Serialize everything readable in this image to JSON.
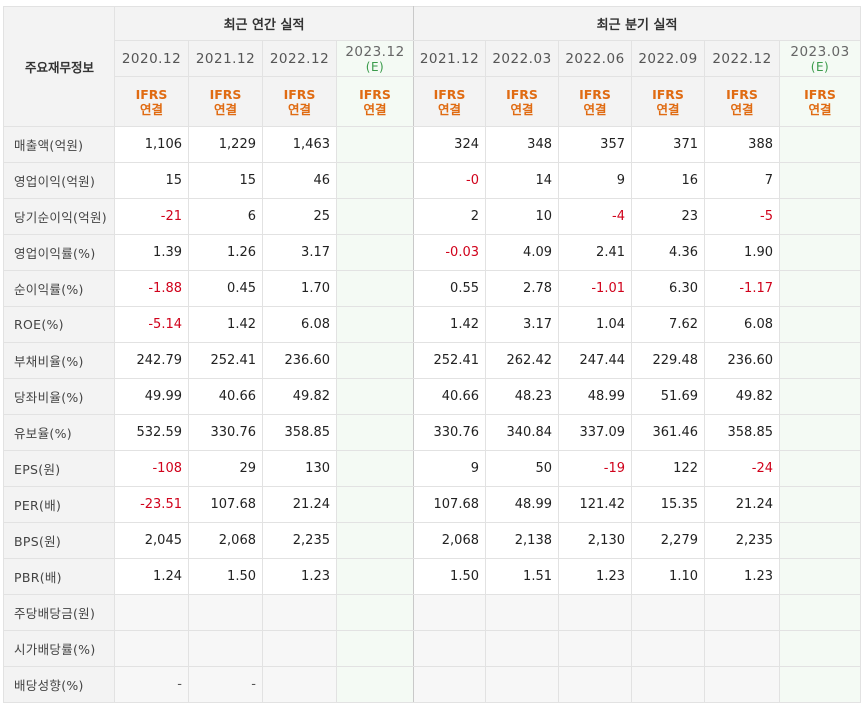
{
  "table": {
    "corner_label": "주요재무정보",
    "group_headers": [
      "최근 연간 실적",
      "최근 분기 실적"
    ],
    "annual_periods": [
      {
        "year": "2020.12",
        "sub": "",
        "basis": [
          "IFRS",
          "연결"
        ],
        "estimate": false
      },
      {
        "year": "2021.12",
        "sub": "",
        "basis": [
          "IFRS",
          "연결"
        ],
        "estimate": false
      },
      {
        "year": "2022.12",
        "sub": "",
        "basis": [
          "IFRS",
          "연결"
        ],
        "estimate": false
      },
      {
        "year": "2023.12",
        "sub": "(E)",
        "basis": [
          "IFRS",
          "연결"
        ],
        "estimate": true
      }
    ],
    "quarter_periods": [
      {
        "year": "2021.12",
        "sub": "",
        "basis": [
          "IFRS",
          "연결"
        ],
        "estimate": false
      },
      {
        "year": "2022.03",
        "sub": "",
        "basis": [
          "IFRS",
          "연결"
        ],
        "estimate": false
      },
      {
        "year": "2022.06",
        "sub": "",
        "basis": [
          "IFRS",
          "연결"
        ],
        "estimate": false
      },
      {
        "year": "2022.09",
        "sub": "",
        "basis": [
          "IFRS",
          "연결"
        ],
        "estimate": false
      },
      {
        "year": "2022.12",
        "sub": "",
        "basis": [
          "IFRS",
          "연결"
        ],
        "estimate": false
      },
      {
        "year": "2023.03",
        "sub": "(E)",
        "basis": [
          "IFRS",
          "연결"
        ],
        "estimate": true
      }
    ],
    "rows": [
      {
        "label": "매출액(억원)",
        "annual": [
          "1,106",
          "1,229",
          "1,463",
          ""
        ],
        "quarter": [
          "324",
          "348",
          "357",
          "371",
          "388",
          ""
        ]
      },
      {
        "label": "영업이익(억원)",
        "annual": [
          "15",
          "15",
          "46",
          ""
        ],
        "quarter": [
          "-0",
          "14",
          "9",
          "16",
          "7",
          ""
        ]
      },
      {
        "label": "당기순이익(억원)",
        "annual": [
          "-21",
          "6",
          "25",
          ""
        ],
        "quarter": [
          "2",
          "10",
          "-4",
          "23",
          "-5",
          ""
        ]
      },
      {
        "label": "영업이익률(%)",
        "annual": [
          "1.39",
          "1.26",
          "3.17",
          ""
        ],
        "quarter": [
          "-0.03",
          "4.09",
          "2.41",
          "4.36",
          "1.90",
          ""
        ]
      },
      {
        "label": "순이익률(%)",
        "annual": [
          "-1.88",
          "0.45",
          "1.70",
          ""
        ],
        "quarter": [
          "0.55",
          "2.78",
          "-1.01",
          "6.30",
          "-1.17",
          ""
        ]
      },
      {
        "label": "ROE(%)",
        "annual": [
          "-5.14",
          "1.42",
          "6.08",
          ""
        ],
        "quarter": [
          "1.42",
          "3.17",
          "1.04",
          "7.62",
          "6.08",
          ""
        ]
      },
      {
        "label": "부채비율(%)",
        "annual": [
          "242.79",
          "252.41",
          "236.60",
          ""
        ],
        "quarter": [
          "252.41",
          "262.42",
          "247.44",
          "229.48",
          "236.60",
          ""
        ]
      },
      {
        "label": "당좌비율(%)",
        "annual": [
          "49.99",
          "40.66",
          "49.82",
          ""
        ],
        "quarter": [
          "40.66",
          "48.23",
          "48.99",
          "51.69",
          "49.82",
          ""
        ]
      },
      {
        "label": "유보율(%)",
        "annual": [
          "532.59",
          "330.76",
          "358.85",
          ""
        ],
        "quarter": [
          "330.76",
          "340.84",
          "337.09",
          "361.46",
          "358.85",
          ""
        ]
      },
      {
        "label": "EPS(원)",
        "annual": [
          "-108",
          "29",
          "130",
          ""
        ],
        "quarter": [
          "9",
          "50",
          "-19",
          "122",
          "-24",
          ""
        ]
      },
      {
        "label": "PER(배)",
        "annual": [
          "-23.51",
          "107.68",
          "21.24",
          ""
        ],
        "quarter": [
          "107.68",
          "48.99",
          "121.42",
          "15.35",
          "21.24",
          ""
        ]
      },
      {
        "label": "BPS(원)",
        "annual": [
          "2,045",
          "2,068",
          "2,235",
          ""
        ],
        "quarter": [
          "2,068",
          "2,138",
          "2,130",
          "2,279",
          "2,235",
          ""
        ]
      },
      {
        "label": "PBR(배)",
        "annual": [
          "1.24",
          "1.50",
          "1.23",
          ""
        ],
        "quarter": [
          "1.50",
          "1.51",
          "1.23",
          "1.10",
          "1.23",
          ""
        ]
      },
      {
        "label": "주당배당금(원)",
        "annual": [
          "",
          "",
          "",
          ""
        ],
        "quarter": [
          "",
          "",
          "",
          "",
          "",
          ""
        ]
      },
      {
        "label": "시가배당률(%)",
        "annual": [
          "",
          "",
          "",
          ""
        ],
        "quarter": [
          "",
          "",
          "",
          "",
          "",
          ""
        ]
      },
      {
        "label": "배당성향(%)",
        "annual": [
          "-",
          "-",
          "",
          ""
        ],
        "quarter": [
          "",
          "",
          "",
          "",
          "",
          ""
        ]
      }
    ],
    "group_breaks_before_row": [
      3,
      6,
      9,
      13
    ],
    "negative_color": "#d0021b",
    "basis_color": "#e06b12",
    "estimate_color": "#3a9b4b"
  }
}
